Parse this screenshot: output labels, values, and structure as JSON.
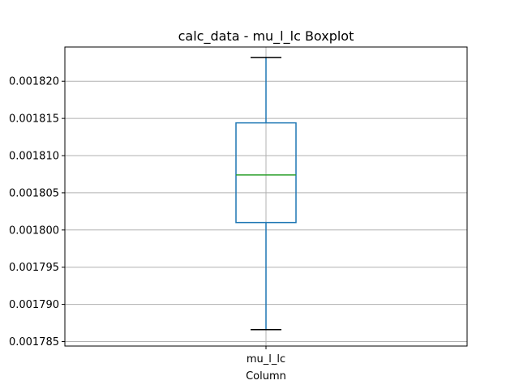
{
  "chart_data": {
    "type": "boxplot",
    "title": "calc_data - mu_l_lc Boxplot",
    "xlabel": "Column",
    "ylabel": "",
    "categories": [
      "mu_l_lc"
    ],
    "ylim": [
      0.0017844,
      0.0018246
    ],
    "yticks": [
      0.001785,
      0.00179,
      0.001795,
      0.0018,
      0.001805,
      0.00181,
      0.001815,
      0.00182
    ],
    "ytick_labels": [
      "0.001785",
      "0.001790",
      "0.001795",
      "0.001800",
      "0.001805",
      "0.001810",
      "0.001815",
      "0.001820"
    ],
    "grid": true,
    "boxes": [
      {
        "name": "mu_l_lc",
        "whisker_low": 0.0017866,
        "q1": 0.001801,
        "median": 0.0018074,
        "q3": 0.0018144,
        "whisker_high": 0.0018232
      }
    ],
    "colors": {
      "box": "#1f77b4",
      "whisker": "#1f77b4",
      "median": "#2ca02c",
      "cap": "#000000",
      "grid": "#b0b0b0"
    }
  }
}
